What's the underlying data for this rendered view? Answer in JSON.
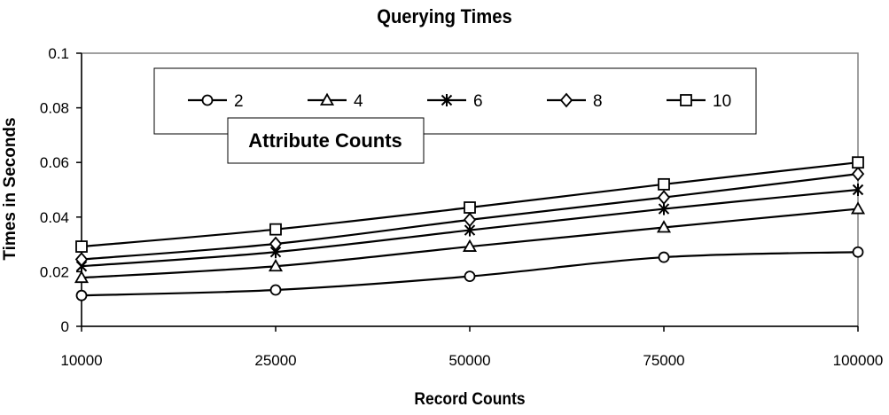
{
  "chart_data": {
    "type": "line",
    "title": "Querying Times",
    "xlabel": "Record Counts",
    "ylabel": "Times in Seconds",
    "categories": [
      "10000",
      "25000",
      "50000",
      "75000",
      "100000"
    ],
    "ylim": [
      0,
      0.1
    ],
    "yticks": [
      "0",
      "0.02",
      "0.04",
      "0.06",
      "0.08",
      "0.1"
    ],
    "grid": false,
    "legend_title": "Attribute Counts",
    "legend_position": "top",
    "series": [
      {
        "name": "2",
        "marker": "circle",
        "values": [
          0.0113,
          0.0133,
          0.0183,
          0.0253,
          0.0272
        ]
      },
      {
        "name": "4",
        "marker": "triangle",
        "values": [
          0.0178,
          0.022,
          0.0292,
          0.0362,
          0.043
        ]
      },
      {
        "name": "6",
        "marker": "x-star",
        "values": [
          0.022,
          0.0272,
          0.0352,
          0.043,
          0.05
        ]
      },
      {
        "name": "8",
        "marker": "diamond",
        "values": [
          0.0245,
          0.0302,
          0.039,
          0.0472,
          0.0558
        ]
      },
      {
        "name": "10",
        "marker": "square",
        "values": [
          0.0292,
          0.0355,
          0.0435,
          0.052,
          0.06
        ]
      }
    ]
  }
}
